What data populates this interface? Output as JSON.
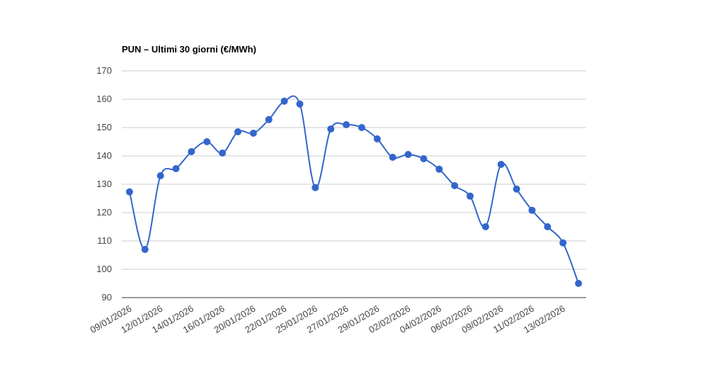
{
  "chart_data": {
    "type": "line",
    "title": "PUN – Ultimi 30 giorni (€/MWh)",
    "categories": [
      "09/01/2026",
      null,
      "12/01/2026",
      null,
      "14/01/2026",
      null,
      "16/01/2026",
      null,
      "20/01/2026",
      null,
      "22/01/2026",
      null,
      "25/01/2026",
      null,
      "27/01/2026",
      null,
      "29/01/2026",
      null,
      "02/02/2026",
      null,
      "04/02/2026",
      null,
      "06/02/2026",
      null,
      "09/02/2026",
      null,
      "11/02/2026",
      null,
      "13/02/2026",
      null
    ],
    "values": [
      127.3,
      107,
      133,
      135.5,
      141.5,
      145,
      141,
      148.5,
      148,
      152.8,
      159.3,
      158.3,
      128.8,
      149.5,
      151,
      150,
      146,
      139.5,
      140.5,
      139,
      135.3,
      129.5,
      125.8,
      115,
      137,
      128.3,
      120.8,
      115,
      109.3,
      95
    ],
    "color": "#3366cc",
    "ylim": [
      90,
      170
    ],
    "yticks": [
      90,
      100,
      110,
      120,
      130,
      140,
      150,
      160,
      170
    ],
    "grid": true
  }
}
